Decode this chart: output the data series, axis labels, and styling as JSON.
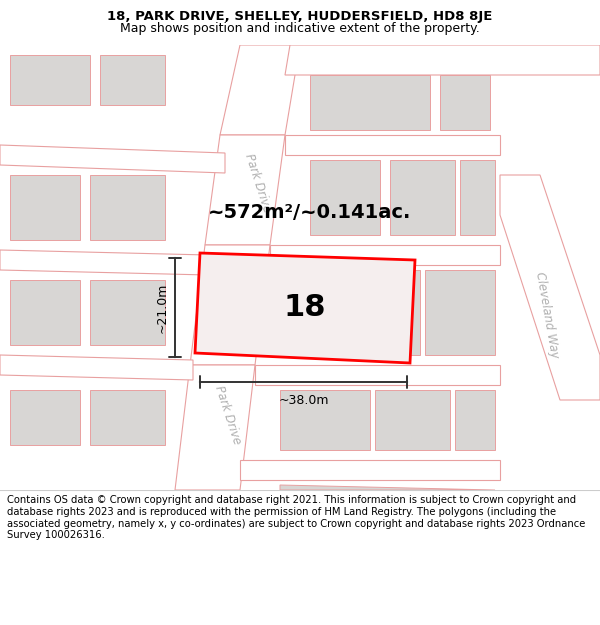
{
  "title_line1": "18, PARK DRIVE, SHELLEY, HUDDERSFIELD, HD8 8JE",
  "title_line2": "Map shows position and indicative extent of the property.",
  "footer_text": "Contains OS data © Crown copyright and database right 2021. This information is subject to Crown copyright and database rights 2023 and is reproduced with the permission of HM Land Registry. The polygons (including the associated geometry, namely x, y co-ordinates) are subject to Crown copyright and database rights 2023 Ordnance Survey 100026316.",
  "area_label": "~572m²/~0.141ac.",
  "property_number": "18",
  "width_label": "~38.0m",
  "height_label": "~21.0m",
  "map_bg": "#f0eeec",
  "road_fill": "#ffffff",
  "road_stroke": "#e8a0a0",
  "building_fill": "#d8d6d4",
  "building_stroke": "#e8a0a0",
  "property_stroke": "#ff0000",
  "property_fill": "#f5eeee",
  "dim_color": "#333333",
  "street_color": "#b0b0b0",
  "title_fs": 9.5,
  "footer_fs": 7.2
}
